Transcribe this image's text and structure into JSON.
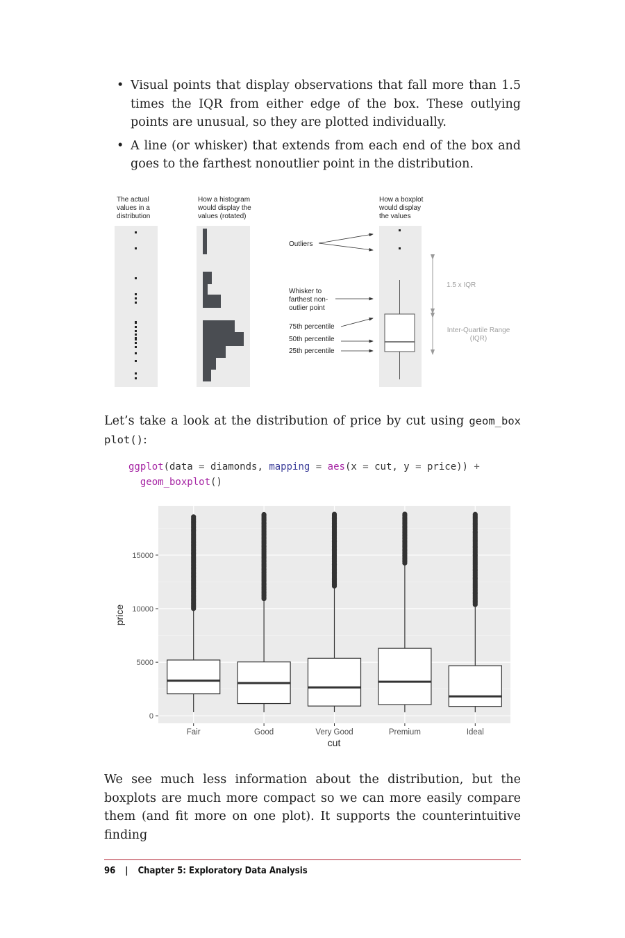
{
  "bullets": [
    "Visual points that display observations that fall more than 1.5 times the IQR from either edge of the box. These outlying points are unusual, so they are plotted individually.",
    "A line (or whisker) that extends from each end of the box and goes to the farthest nonoutlier point in the distribution."
  ],
  "figure": {
    "col1_label": [
      "The actual",
      "values in a",
      "distribution"
    ],
    "col2_label": [
      "How a histogram",
      "would display the",
      "values (rotated)"
    ],
    "col3_label": [
      "How a boxplot",
      "would display",
      "the values"
    ],
    "outliers": "Outliers",
    "whisker": [
      "Whisker to",
      "farthest non-",
      "outlier point"
    ],
    "p75": "75th percentile",
    "p50": "50th percentile",
    "p25": "25th percentile",
    "iqr15": "1.5 x IQR",
    "iqr": [
      "Inter-Quartile Range",
      "(IQR)"
    ]
  },
  "para1": {
    "pre": "Let’s take a look at the distribution of price by cut using ",
    "code": "geom_box plot()",
    "post": ":"
  },
  "code": {
    "l1_fn1": "ggplot",
    "l1_a": "(data ",
    "l1_eq1": "=",
    "l1_b": " diamonds, ",
    "l1_kw": "mapping",
    "l1_c": " ",
    "l1_eq2": "=",
    "l1_d": " ",
    "l1_fn2": "aes",
    "l1_e": "(x ",
    "l1_eq3": "=",
    "l1_f": " cut, y ",
    "l1_eq4": "=",
    "l1_g": " price)) ",
    "l1_plus": "+",
    "l2_fn": "geom_boxplot",
    "l2_a": "()"
  },
  "chart_data": {
    "type": "boxplot",
    "title": "",
    "xlabel": "cut",
    "ylabel": "price",
    "ylim": [
      -700,
      19600
    ],
    "yticks": [
      0,
      5000,
      10000,
      15000
    ],
    "ytick_labels": [
      "0",
      "5000",
      "10000",
      "15000"
    ],
    "categories": [
      "Fair",
      "Good",
      "Very Good",
      "Premium",
      "Ideal"
    ],
    "boxes": [
      {
        "min": 337,
        "q1": 2050,
        "median": 3282,
        "q3": 5206,
        "whisker_high": 9950,
        "outlier_range": [
          9950,
          18574
        ]
      },
      {
        "min": 327,
        "q1": 1145,
        "median": 3050,
        "q3": 5028,
        "whisker_high": 10850,
        "outlier_range": [
          10850,
          18788
        ]
      },
      {
        "min": 336,
        "q1": 912,
        "median": 2648,
        "q3": 5373,
        "whisker_high": 12050,
        "outlier_range": [
          12050,
          18818
        ]
      },
      {
        "min": 326,
        "q1": 1046,
        "median": 3185,
        "q3": 6296,
        "whisker_high": 14150,
        "outlier_range": [
          14150,
          18823
        ]
      },
      {
        "min": 326,
        "q1": 878,
        "median": 1810,
        "q3": 4678,
        "whisker_high": 10350,
        "outlier_range": [
          10350,
          18806
        ]
      }
    ],
    "grid": true,
    "panel_color": "#ebebeb",
    "box_fill": "#ffffff",
    "line_color": "#333333"
  },
  "para2": "We see much less information about the distribution, but the boxplots are much more compact so we can more easily compare them (and fit more on one plot). It supports the counterintuitive finding",
  "footer": {
    "page": "96",
    "sep": "|",
    "chapter": "Chapter 5: Exploratory Data Analysis"
  }
}
